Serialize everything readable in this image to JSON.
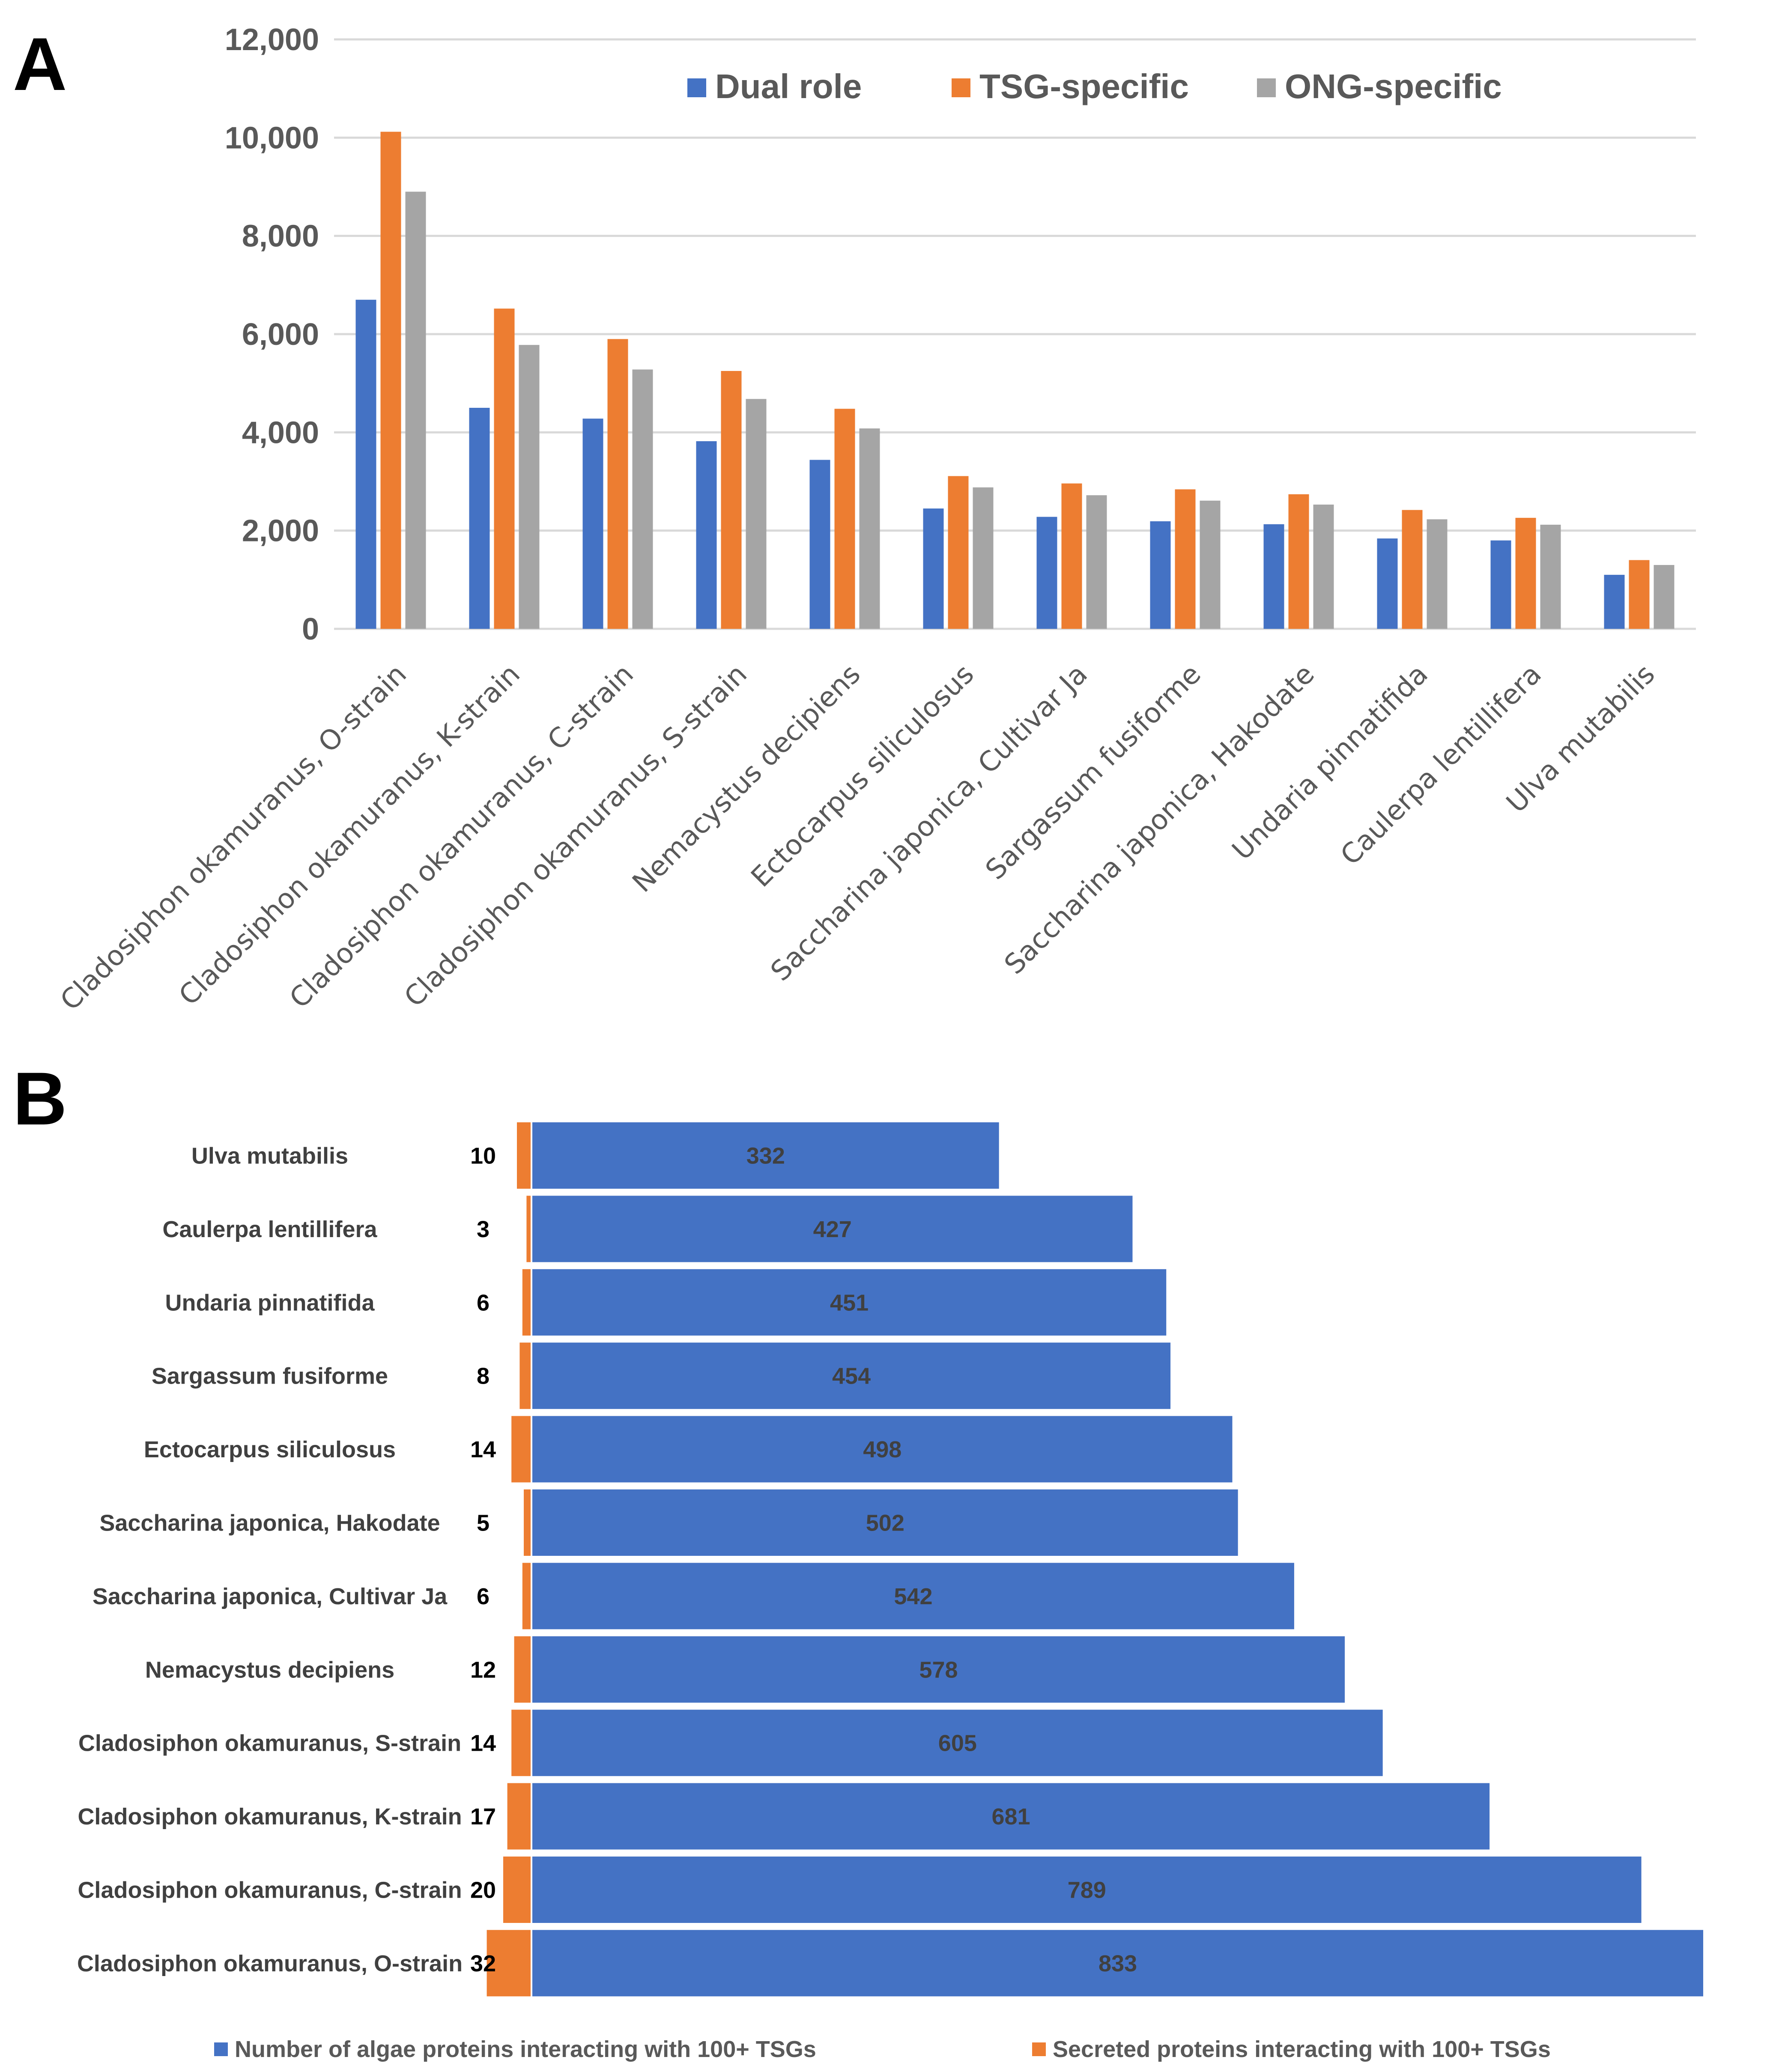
{
  "panel_a_label": "A",
  "panel_b_label": "B",
  "colors": {
    "dual": "#4472C4",
    "tsg": "#ED7D31",
    "ong": "#A5A5A5",
    "grid": "#D9D9D9"
  },
  "chart_data": [
    {
      "type": "bar",
      "title": "",
      "xlabel": "",
      "ylabel": "",
      "ylim": [
        0,
        12000
      ],
      "yticks": [
        0,
        2000,
        4000,
        6000,
        8000,
        10000,
        12000
      ],
      "ytick_labels": [
        "0",
        "2,000",
        "4,000",
        "6,000",
        "8,000",
        "10,000",
        "12,000"
      ],
      "grid": true,
      "legend_position": "top",
      "categories": [
        "Cladosiphon okamuranus, O-strain",
        "Cladosiphon okamuranus, K-strain",
        "Cladosiphon okamuranus, C-strain",
        "Cladosiphon okamuranus, S-strain",
        "Nemacystus decipiens",
        "Ectocarpus siliculosus",
        "Saccharina japonica, Cultivar Ja",
        "Sargassum fusiforme",
        "Saccharina japonica, Hakodate",
        "Undaria pinnatifida",
        "Caulerpa lentillifera",
        "Ulva mutabilis"
      ],
      "series": [
        {
          "name": "Dual role",
          "color_key": "dual",
          "values": [
            6700,
            4500,
            4280,
            3820,
            3440,
            2450,
            2280,
            2190,
            2130,
            1840,
            1800,
            1100
          ]
        },
        {
          "name": "TSG-specific",
          "color_key": "tsg",
          "values": [
            10120,
            6520,
            5900,
            5250,
            4480,
            3110,
            2960,
            2840,
            2740,
            2420,
            2260,
            1400
          ]
        },
        {
          "name": "ONG-specific",
          "color_key": "ong",
          "values": [
            8900,
            5780,
            5280,
            4680,
            4080,
            2880,
            2720,
            2610,
            2530,
            2230,
            2120,
            1300
          ]
        }
      ]
    },
    {
      "type": "bar",
      "orientation": "horizontal",
      "title": "",
      "legend_position": "bottom",
      "categories": [
        "Ulva mutabilis",
        "Caulerpa lentillifera",
        "Undaria pinnatifida",
        "Sargassum fusiforme",
        "Ectocarpus siliculosus",
        "Saccharina japonica, Hakodate",
        "Saccharina japonica, Cultivar Ja",
        "Nemacystus decipiens",
        "Cladosiphon okamuranus, S-strain",
        "Cladosiphon okamuranus, K-strain",
        "Cladosiphon okamuranus, C-strain",
        "Cladosiphon okamuranus, O-strain"
      ],
      "series": [
        {
          "name": "Number of algae proteins interacting with 100+ TSGs",
          "color_key": "dual",
          "values": [
            332,
            427,
            451,
            454,
            498,
            502,
            542,
            578,
            605,
            681,
            789,
            833
          ]
        },
        {
          "name": "Secreted proteins interacting with 100+ TSGs",
          "color_key": "tsg",
          "values": [
            10,
            3,
            6,
            8,
            14,
            5,
            6,
            12,
            14,
            17,
            20,
            32
          ]
        }
      ]
    }
  ]
}
